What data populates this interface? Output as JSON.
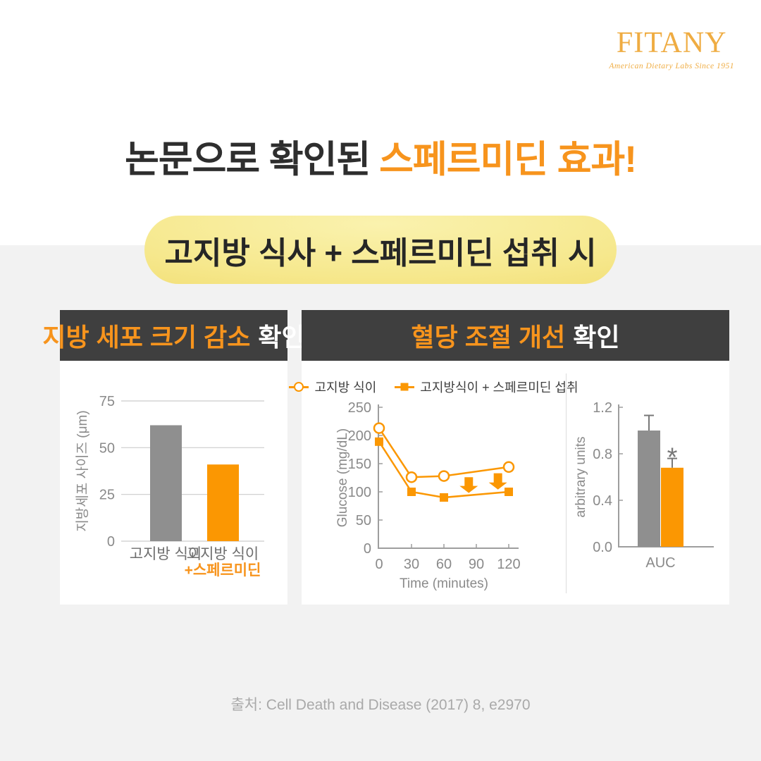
{
  "brand": {
    "name": "FITANY",
    "tagline": "American Dietary Labs  Since 1951",
    "color": "#EFAC42"
  },
  "title": {
    "dark": "논문으로 확인된",
    "orange": "스페르미딘 효과!"
  },
  "badge": {
    "text": "고지방 식사 + 스페르미딘 섭취 시"
  },
  "panels": {
    "left": {
      "header_highlight": "지방 세포 크기 감소",
      "header_suffix": "확인"
    },
    "right": {
      "header_highlight": "혈당 조절 개선",
      "header_suffix": "확인"
    }
  },
  "source": "출처: Cell Death and Disease (2017) 8, e2970",
  "colors": {
    "orange_text": "#F7941D",
    "orange_bar": "#FB9702",
    "gray_bar": "#8F8F8F",
    "header_bg": "#3F3F3F",
    "section_bg": "#F2F2F2",
    "axis": "#9E9E9E",
    "tick_label": "#8A8A8A"
  },
  "chart_data": [
    {
      "id": "fat-cell-size",
      "type": "bar",
      "ylabel": "지방세포 사이즈 (μm)",
      "ylim": [
        0,
        75
      ],
      "yticks": [
        0,
        25,
        50,
        75
      ],
      "grid": true,
      "categories": [
        "고지방 식이",
        "고지방 식이\n+스페르미딘"
      ],
      "values": [
        62,
        41
      ],
      "bar_colors": [
        "#8F8F8F",
        "#FB9702"
      ],
      "category_label_color": "#6E6E6E",
      "highlight_color": "#F7941D"
    },
    {
      "id": "glucose-over-time",
      "type": "line",
      "xlabel": "Time (minutes)",
      "ylabel": "Glucose (mg/dL)",
      "xlim": [
        0,
        130
      ],
      "ylim": [
        0,
        250
      ],
      "xticks": [
        0,
        30,
        60,
        90,
        120
      ],
      "yticks": [
        0,
        50,
        100,
        150,
        200,
        250
      ],
      "legend_position": "top",
      "series": [
        {
          "name": "고지방 식이",
          "marker": "open-circle",
          "color": "#FB9702",
          "x": [
            0,
            30,
            60,
            120
          ],
          "y": [
            213,
            126,
            128,
            144
          ]
        },
        {
          "name": "고지방식이 + 스페르미딘 섭취",
          "marker": "filled-square",
          "color": "#FB9702",
          "x": [
            0,
            30,
            60,
            120
          ],
          "y": [
            189,
            100,
            90,
            100
          ]
        }
      ],
      "annotations": [
        {
          "type": "down-arrow",
          "x": 83,
          "y_top": 126,
          "y_bottom": 98
        },
        {
          "type": "down-arrow",
          "x": 110,
          "y_top": 133,
          "y_bottom": 104
        }
      ]
    },
    {
      "id": "auc",
      "type": "bar",
      "ylabel": "arbitrary units",
      "ylim": [
        0,
        1.2
      ],
      "yticks": [
        0,
        0.4,
        0.8,
        1.2
      ],
      "ytick_decimals": 1,
      "categories": [
        "AUC"
      ],
      "series": [
        {
          "name": "고지방 식이",
          "value": 1.0,
          "error": 0.13,
          "color": "#8F8F8F"
        },
        {
          "name": "고지방식이 + 스페르미딘 섭취",
          "value": 0.68,
          "error": 0.08,
          "color": "#FB9702",
          "significance": "*"
        }
      ]
    }
  ]
}
